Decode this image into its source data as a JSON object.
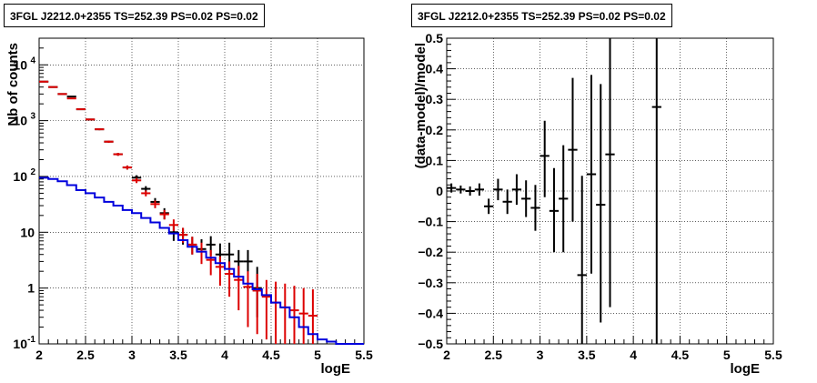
{
  "panels": [
    {
      "title": "3FGL J2212.0+2355 TS=252.39 PS=0.02 PS=0.02"
    },
    {
      "title": "3FGL J2212.0+2355 TS=252.39 PS=0.02 PS=0.02"
    }
  ],
  "chart_data": [
    {
      "type": "scatter",
      "title": "3FGL J2212.0+2355 TS=252.39 PS=0.02 PS=0.02",
      "xlabel": "logE",
      "ylabel": "Nb of counts",
      "xlim": [
        2,
        5.5
      ],
      "ylim": [
        0.1,
        30000
      ],
      "yscale": "log",
      "grid": true,
      "xticks": [
        "2",
        "2.5",
        "3",
        "3.5",
        "4",
        "4.5",
        "5",
        "5.5"
      ],
      "yticks": [
        {
          "value": 0.1,
          "label": "10",
          "exp": "-1"
        },
        {
          "value": 1,
          "label": "1",
          "exp": ""
        },
        {
          "value": 10,
          "label": "10",
          "exp": ""
        },
        {
          "value": 100,
          "label": "10",
          "exp": "2"
        },
        {
          "value": 1000,
          "label": "10",
          "exp": "3"
        },
        {
          "value": 10000,
          "label": "10",
          "exp": "4"
        }
      ],
      "series": [
        {
          "color": "#000000",
          "style": "errorbar",
          "x": [
            2.05,
            2.15,
            2.25,
            2.35,
            2.45,
            2.55,
            2.65,
            2.75,
            2.85,
            2.95,
            3.05,
            3.15,
            3.25,
            3.35,
            3.45,
            3.55,
            3.65,
            3.75,
            3.85,
            3.95,
            4.05,
            4.15,
            4.25,
            4.35
          ],
          "y": [
            5000,
            4000,
            3000,
            2700,
            1600,
            1050,
            700,
            420,
            250,
            145,
            95,
            60,
            35,
            22,
            10,
            9,
            6,
            5,
            6,
            4,
            4,
            3,
            3,
            1
          ],
          "ylo": [
            4930,
            3940,
            2950,
            2650,
            1560,
            1020,
            675,
            400,
            235,
            133,
            85,
            53,
            29,
            17,
            7,
            6,
            4,
            2.8,
            3.8,
            2.3,
            2.2,
            1.6,
            1.6,
            0.3
          ],
          "yhi": [
            5070,
            4060,
            3050,
            2750,
            1640,
            1080,
            725,
            440,
            265,
            157,
            105,
            67,
            41,
            27,
            13.5,
            12,
            8.3,
            7.5,
            8.5,
            6.3,
            6.5,
            4.8,
            4.8,
            2.4
          ]
        },
        {
          "color": "#dd0000",
          "style": "errorbar",
          "x": [
            2.05,
            2.15,
            2.25,
            2.35,
            2.45,
            2.55,
            2.65,
            2.75,
            2.85,
            2.95,
            3.05,
            3.15,
            3.25,
            3.35,
            3.45,
            3.55,
            3.65,
            3.75,
            3.85,
            3.95,
            4.05,
            4.15,
            4.25,
            4.35,
            4.45,
            4.55,
            4.65,
            4.75,
            4.85,
            4.95
          ],
          "y": [
            5000,
            4000,
            3000,
            2500,
            1600,
            1050,
            700,
            420,
            250,
            145,
            85,
            50,
            32,
            21,
            13.5,
            9,
            6,
            4.5,
            3.2,
            2.4,
            1.8,
            1.4,
            1.05,
            0.9,
            0.7,
            0.55,
            0.45,
            0.4,
            0.35,
            0.32
          ],
          "ylo": [
            4930,
            3940,
            2950,
            2450,
            1560,
            1020,
            675,
            400,
            235,
            133,
            76,
            44,
            27,
            17,
            10.5,
            6.5,
            4,
            2.7,
            1.7,
            1.1,
            0.7,
            0.4,
            0.2,
            0.15,
            0.12,
            0.1,
            0.1,
            0.1,
            0.1,
            0.1
          ],
          "yhi": [
            5070,
            4060,
            3050,
            2550,
            1640,
            1080,
            725,
            440,
            265,
            157,
            94,
            56,
            37,
            25,
            17,
            12,
            8.3,
            6.5,
            4.8,
            3.7,
            3,
            2.5,
            2,
            1.8,
            1.4,
            1.3,
            1.2,
            1.1,
            1,
            0.95
          ]
        },
        {
          "color": "#0000dd",
          "style": "step",
          "edges": [
            2.0,
            2.1,
            2.2,
            2.3,
            2.4,
            2.5,
            2.6,
            2.7,
            2.8,
            2.9,
            3.0,
            3.1,
            3.2,
            3.3,
            3.4,
            3.5,
            3.6,
            3.7,
            3.8,
            3.9,
            4.0,
            4.1,
            4.2,
            4.3,
            4.4,
            4.5,
            4.6,
            4.7,
            4.8,
            4.9,
            5.0,
            5.1,
            5.2,
            5.3,
            5.4,
            5.5
          ],
          "values": [
            95,
            90,
            82,
            70,
            57,
            50,
            42,
            35,
            30,
            25,
            22,
            18,
            15,
            12,
            9.5,
            7.2,
            5.5,
            4.5,
            3.5,
            2.8,
            2.2,
            1.6,
            1.2,
            0.95,
            0.75,
            0.55,
            0.45,
            0.3,
            0.2,
            0.15,
            0.12,
            0.11,
            0.1,
            0.1,
            0.1
          ]
        }
      ]
    },
    {
      "type": "scatter",
      "title": "3FGL J2212.0+2355 TS=252.39 PS=0.02 PS=0.02",
      "xlabel": "logE",
      "ylabel": "(data-model)/model",
      "xlim": [
        2,
        5.5
      ],
      "ylim": [
        -0.5,
        0.5
      ],
      "grid": true,
      "xticks": [
        "2",
        "2.5",
        "3",
        "3.5",
        "4",
        "4.5",
        "5",
        "5.5"
      ],
      "yticks": [
        "−0.5",
        "−0.4",
        "−0.3",
        "−0.2",
        "−0.1",
        "0",
        "0.1",
        "0.2",
        "0.3",
        "0.4",
        "0.5"
      ],
      "series": [
        {
          "color": "#000000",
          "style": "errorbar",
          "x": [
            2.05,
            2.15,
            2.25,
            2.35,
            2.45,
            2.55,
            2.65,
            2.75,
            2.85,
            2.95,
            3.05,
            3.15,
            3.25,
            3.35,
            3.45,
            3.55,
            3.65,
            3.75,
            4.25
          ],
          "y": [
            0.01,
            0.005,
            0.0,
            0.005,
            -0.05,
            0.005,
            -0.035,
            0.005,
            -0.025,
            -0.055,
            0.115,
            -0.065,
            -0.025,
            0.135,
            -0.275,
            0.055,
            -0.045,
            0.12,
            0.275
          ],
          "ylo": [
            -0.005,
            -0.008,
            -0.015,
            -0.015,
            -0.075,
            -0.03,
            -0.075,
            -0.045,
            -0.085,
            -0.13,
            -0.02,
            -0.2,
            -0.2,
            -0.1,
            -0.6,
            -0.27,
            -0.43,
            -0.38,
            -0.6
          ],
          "yhi": [
            0.025,
            0.018,
            0.015,
            0.025,
            -0.025,
            0.04,
            0.005,
            0.055,
            0.035,
            0.02,
            0.23,
            0.075,
            0.15,
            0.37,
            0.05,
            0.38,
            0.35,
            0.6,
            0.6
          ]
        }
      ]
    }
  ]
}
